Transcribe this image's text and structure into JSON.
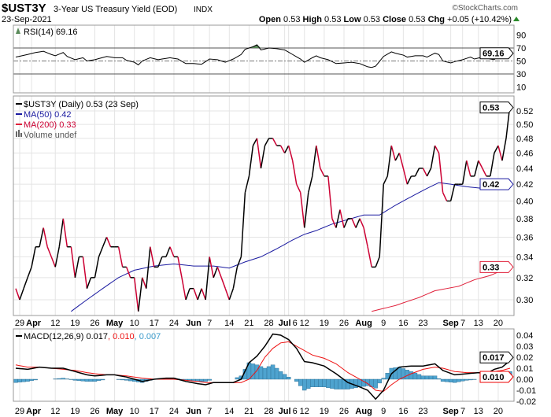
{
  "header": {
    "symbol": "$UST3Y",
    "name": "3-Year US Treasury Yield (EOD)",
    "exchange": "INDX",
    "date": "23-Sep-2021",
    "brand": "©StockCharts.com",
    "open_label": "Open",
    "open": "0.53",
    "high_label": "High",
    "high": "0.53",
    "low_label": "Low",
    "low": "0.53",
    "close_label": "Close",
    "close": "0.53",
    "chg_label": "Chg",
    "chg": "+0.05 (+10.42%)"
  },
  "colors": {
    "up": "#000000",
    "down": "#cc0033",
    "ma50": "#1a1aa0",
    "ma200": "#e0203a",
    "rsi_fill": "#5a8a5a",
    "macd": "#000000",
    "signal": "#ee1111",
    "hist": "#4ea3cf"
  },
  "chart_data": [
    {
      "type": "line",
      "title": "RSI(14) 69.16",
      "legend": "RSI(14) 69.16",
      "last_label": "69.16",
      "ylim": [
        0,
        100
      ],
      "yticks": [
        "90",
        "70",
        "50",
        "30",
        "10"
      ],
      "ytick_values": [
        90,
        70,
        50,
        30,
        10
      ],
      "points": [
        [
          0,
          56
        ],
        [
          3,
          60
        ],
        [
          5,
          63
        ],
        [
          7,
          65
        ],
        [
          9,
          60
        ],
        [
          10,
          58
        ],
        [
          12,
          63
        ],
        [
          13,
          57
        ],
        [
          15,
          52
        ],
        [
          17,
          55
        ],
        [
          18,
          50
        ],
        [
          20,
          52
        ],
        [
          23,
          57
        ],
        [
          25,
          55
        ],
        [
          27,
          55
        ],
        [
          28,
          51
        ],
        [
          30,
          48
        ],
        [
          31,
          44
        ],
        [
          32,
          50
        ],
        [
          34,
          55
        ],
        [
          36,
          52
        ],
        [
          39,
          55
        ],
        [
          41,
          53
        ],
        [
          43,
          46
        ],
        [
          45,
          46
        ],
        [
          47,
          45
        ],
        [
          49,
          53
        ],
        [
          51,
          52
        ],
        [
          53,
          48
        ],
        [
          55,
          53
        ],
        [
          57,
          60
        ],
        [
          58,
          68
        ],
        [
          60,
          72
        ],
        [
          61,
          75
        ],
        [
          62,
          67
        ],
        [
          64,
          70
        ],
        [
          66,
          69
        ],
        [
          68,
          67
        ],
        [
          70,
          60
        ],
        [
          72,
          53
        ],
        [
          73,
          48
        ],
        [
          75,
          55
        ],
        [
          76,
          58
        ],
        [
          77,
          55
        ],
        [
          79,
          52
        ],
        [
          81,
          46
        ],
        [
          83,
          47
        ],
        [
          85,
          48
        ],
        [
          87,
          46
        ],
        [
          89,
          41
        ],
        [
          90,
          40
        ],
        [
          91,
          42
        ],
        [
          93,
          57
        ],
        [
          95,
          64
        ],
        [
          96,
          62
        ],
        [
          98,
          59
        ],
        [
          99,
          56
        ],
        [
          101,
          58
        ],
        [
          103,
          58
        ],
        [
          104,
          56
        ],
        [
          106,
          62
        ],
        [
          107,
          60
        ],
        [
          108,
          50
        ],
        [
          110,
          47
        ],
        [
          111,
          49
        ],
        [
          113,
          52
        ],
        [
          115,
          56
        ],
        [
          116,
          53
        ],
        [
          118,
          56
        ],
        [
          120,
          53
        ],
        [
          121,
          52
        ],
        [
          122,
          59
        ],
        [
          123,
          57
        ],
        [
          124,
          62
        ],
        [
          125,
          69.16
        ]
      ]
    },
    {
      "type": "line",
      "title": "$UST3Y (Daily) 0.53 (23 Sep)",
      "scale": "log",
      "legend": [
        "$UST3Y (Daily) 0.53 (23 Sep)",
        "MA(50) 0.42",
        "MA(200) 0.33",
        "Volume undef"
      ],
      "last_labels": {
        "close": "0.53",
        "ma50": "0.42",
        "ma200": "0.33"
      },
      "yticks": [
        "0.52",
        "0.50",
        "0.48",
        "0.46",
        "0.44",
        "0.42",
        "0.40",
        "0.38",
        "0.36",
        "0.34",
        "0.32",
        "0.30"
      ],
      "ytick_values": [
        0.52,
        0.5,
        0.48,
        0.46,
        0.44,
        0.42,
        0.4,
        0.38,
        0.36,
        0.34,
        0.32,
        0.3
      ],
      "close": [
        0.31,
        0.3,
        0.31,
        0.32,
        0.33,
        0.35,
        0.35,
        0.37,
        0.35,
        0.34,
        0.33,
        0.35,
        0.38,
        0.35,
        0.35,
        0.32,
        0.34,
        0.34,
        0.31,
        0.32,
        0.32,
        0.34,
        0.35,
        0.36,
        0.35,
        0.35,
        0.35,
        0.33,
        0.33,
        0.32,
        0.32,
        0.29,
        0.32,
        0.31,
        0.35,
        0.33,
        0.33,
        0.34,
        0.34,
        0.35,
        0.34,
        0.34,
        0.32,
        0.3,
        0.31,
        0.31,
        0.3,
        0.31,
        0.3,
        0.34,
        0.32,
        0.33,
        0.32,
        0.31,
        0.3,
        0.31,
        0.33,
        0.34,
        0.41,
        0.43,
        0.47,
        0.48,
        0.44,
        0.47,
        0.48,
        0.48,
        0.47,
        0.47,
        0.46,
        0.47,
        0.45,
        0.42,
        0.41,
        0.37,
        0.41,
        0.43,
        0.47,
        0.44,
        0.43,
        0.43,
        0.38,
        0.37,
        0.39,
        0.37,
        0.38,
        0.38,
        0.37,
        0.38,
        0.37,
        0.35,
        0.33,
        0.33,
        0.34,
        0.42,
        0.43,
        0.47,
        0.45,
        0.46,
        0.44,
        0.42,
        0.43,
        0.43,
        0.44,
        0.44,
        0.43,
        0.44,
        0.47,
        0.46,
        0.41,
        0.4,
        0.4,
        0.42,
        0.42,
        0.42,
        0.45,
        0.43,
        0.43,
        0.45,
        0.44,
        0.43,
        0.43,
        0.46,
        0.47,
        0.45,
        0.48,
        0.53
      ],
      "ma50": [
        [
          14,
          0.29
        ],
        [
          20,
          0.305
        ],
        [
          26,
          0.32
        ],
        [
          30,
          0.327
        ],
        [
          35,
          0.331
        ],
        [
          40,
          0.333
        ],
        [
          45,
          0.331
        ],
        [
          50,
          0.331
        ],
        [
          54,
          0.329
        ],
        [
          58,
          0.335
        ],
        [
          62,
          0.34
        ],
        [
          66,
          0.348
        ],
        [
          70,
          0.357
        ],
        [
          73,
          0.363
        ],
        [
          76,
          0.367
        ],
        [
          80,
          0.374
        ],
        [
          84,
          0.379
        ],
        [
          88,
          0.384
        ],
        [
          92,
          0.384
        ],
        [
          96,
          0.395
        ],
        [
          100,
          0.405
        ],
        [
          104,
          0.415
        ],
        [
          107,
          0.422
        ],
        [
          110,
          0.42
        ],
        [
          114,
          0.417
        ],
        [
          118,
          0.415
        ],
        [
          121,
          0.418
        ],
        [
          125,
          0.42
        ]
      ],
      "ma200": [
        [
          90,
          0.29
        ],
        [
          96,
          0.295
        ],
        [
          102,
          0.302
        ],
        [
          106,
          0.308
        ],
        [
          112,
          0.312
        ],
        [
          116,
          0.318
        ],
        [
          120,
          0.322
        ],
        [
          125,
          0.33
        ]
      ],
      "xlabels": [
        [
          "29",
          1
        ],
        [
          "Apr",
          4
        ],
        [
          "12",
          10
        ],
        [
          "19",
          15
        ],
        [
          "26",
          20
        ],
        [
          "May",
          25
        ],
        [
          "10",
          30
        ],
        [
          "17",
          35
        ],
        [
          "24",
          40
        ],
        [
          "Jun",
          45
        ],
        [
          "7",
          49
        ],
        [
          "14",
          54
        ],
        [
          "21",
          59
        ],
        [
          "28",
          64
        ],
        [
          "Jul",
          68
        ],
        [
          "6",
          69
        ],
        [
          "12",
          73
        ],
        [
          "19",
          78
        ],
        [
          "26",
          83
        ],
        [
          "Aug",
          88
        ],
        [
          "9",
          93
        ],
        [
          "16",
          98
        ],
        [
          "23",
          103
        ],
        [
          "Sep",
          110
        ],
        [
          "7",
          113
        ],
        [
          "13",
          117
        ],
        [
          "20",
          122
        ]
      ]
    },
    {
      "type": "line",
      "title": "MACD(12,26,9)",
      "legend_prefix": "MACD(12,26,9) 0.017",
      "legend_signal": ", 0.010",
      "legend_hist": ", 0.007",
      "last_labels": {
        "macd": "0.017",
        "signal": "0.010",
        "hist": "0.007"
      },
      "yticks": [
        "0.04",
        "0.03",
        "0.02",
        "0.01",
        "0.00",
        "-0.01",
        "-0.02"
      ],
      "ytick_values": [
        0.04,
        0.03,
        0.02,
        0.01,
        0,
        -0.01,
        -0.02
      ],
      "points": [
        [
          0,
          0.01,
          0.013
        ],
        [
          3,
          0.009,
          0.011
        ],
        [
          6,
          0.011,
          0.011
        ],
        [
          9,
          0.01,
          0.01
        ],
        [
          12,
          0.01,
          0.009
        ],
        [
          15,
          0.007,
          0.008
        ],
        [
          18,
          0.004,
          0.006
        ],
        [
          20,
          0.003,
          0.005
        ],
        [
          23,
          0.004,
          0.004
        ],
        [
          25,
          0.004,
          0.004
        ],
        [
          28,
          0.002,
          0.003
        ],
        [
          30,
          0.0,
          0.002
        ],
        [
          32,
          -0.002,
          0.001
        ],
        [
          35,
          0.0,
          0.0
        ],
        [
          38,
          0.001,
          0.0
        ],
        [
          40,
          0.001,
          0.0
        ],
        [
          43,
          -0.002,
          -0.001
        ],
        [
          46,
          -0.004,
          -0.002
        ],
        [
          48,
          -0.005,
          -0.003
        ],
        [
          50,
          -0.003,
          -0.003
        ],
        [
          53,
          -0.003,
          -0.003
        ],
        [
          55,
          -0.003,
          -0.003
        ],
        [
          57,
          0.0,
          -0.003
        ],
        [
          59,
          0.015,
          0.0
        ],
        [
          61,
          0.021,
          0.008
        ],
        [
          63,
          0.03,
          0.02
        ],
        [
          65,
          0.041,
          0.028
        ],
        [
          67,
          0.04,
          0.033
        ],
        [
          69,
          0.036,
          0.034
        ],
        [
          71,
          0.028,
          0.03
        ],
        [
          73,
          0.016,
          0.026
        ],
        [
          75,
          0.015,
          0.022
        ],
        [
          78,
          0.012,
          0.019
        ],
        [
          81,
          0.005,
          0.014
        ],
        [
          84,
          -0.003,
          0.006
        ],
        [
          87,
          -0.007,
          0.0
        ],
        [
          89,
          -0.01,
          -0.004
        ],
        [
          91,
          -0.018,
          -0.01
        ],
        [
          93,
          -0.01,
          -0.011
        ],
        [
          95,
          0.005,
          -0.005
        ],
        [
          97,
          0.011,
          0.0
        ],
        [
          100,
          0.012,
          0.005
        ],
        [
          103,
          0.012,
          0.009
        ],
        [
          106,
          0.014,
          0.011
        ],
        [
          108,
          0.008,
          0.01
        ],
        [
          111,
          0.004,
          0.007
        ],
        [
          114,
          0.005,
          0.006
        ],
        [
          117,
          0.006,
          0.006
        ],
        [
          119,
          0.005,
          0.006
        ],
        [
          121,
          0.009,
          0.007
        ],
        [
          123,
          0.011,
          0.008
        ],
        [
          125,
          0.017,
          0.01
        ]
      ]
    }
  ]
}
